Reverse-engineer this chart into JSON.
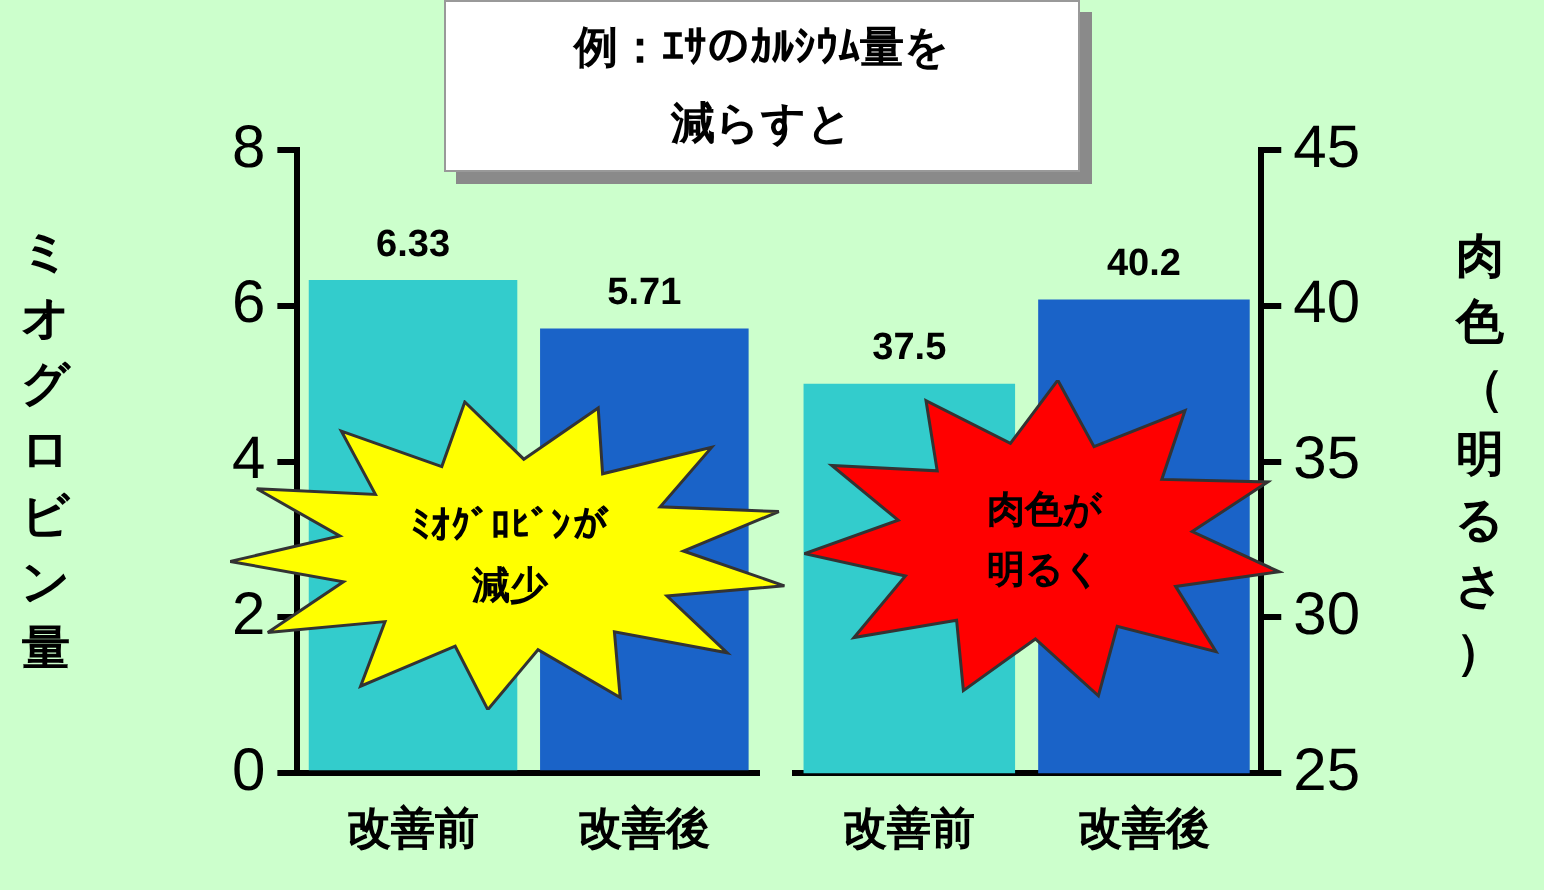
{
  "chart_data": [
    {
      "type": "bar",
      "title": "例：ｴｻのｶﾙｼｳﾑ量を減らすと",
      "categories": [
        "改善前",
        "改善後"
      ],
      "series": [
        {
          "colors": [
            "#33cccc",
            "#1a63c8"
          ],
          "values": [
            6.33,
            5.71
          ]
        }
      ],
      "ylim": [
        0,
        8
      ],
      "yticks": [
        0,
        2,
        4,
        6,
        8
      ],
      "ylabel": "ミオグロビン量",
      "data_labels": true,
      "grid": false,
      "legend": false,
      "annotations": [
        "ﾐｵｸﾞﾛﾋﾞﾝが減少"
      ]
    },
    {
      "type": "bar",
      "categories": [
        "改善前",
        "改善後"
      ],
      "series": [
        {
          "colors": [
            "#33cccc",
            "#1a63c8"
          ],
          "values": [
            37.5,
            40.2
          ],
          "axis": "y2"
        }
      ],
      "y2lim": [
        25,
        45
      ],
      "y2ticks": [
        25,
        30,
        35,
        40,
        45
      ],
      "y2label": "肉色（明るさ）",
      "data_labels": true,
      "grid": false,
      "legend": false,
      "annotations": [
        "肉色が明るく"
      ]
    }
  ]
}
